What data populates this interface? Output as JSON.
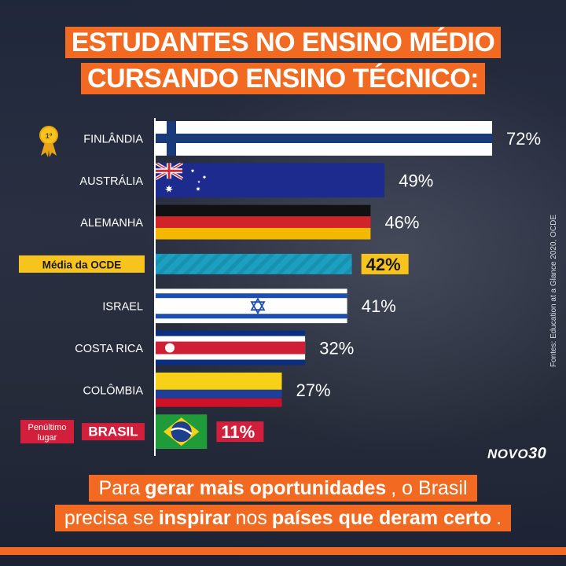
{
  "title": {
    "line1": "ESTUDANTES NO ENSINO MÉDIO",
    "line2": "CURSANDO ENSINO TÉCNICO:"
  },
  "chart_data": {
    "type": "bar",
    "orientation": "horizontal",
    "categories": [
      "FINLÂNDIA",
      "AUSTRÁLIA",
      "ALEMANHA",
      "Média da OCDE",
      "ISRAEL",
      "COSTA RICA",
      "COLÔMBIA",
      "BRASIL"
    ],
    "values": [
      72,
      49,
      46,
      42,
      41,
      32,
      27,
      11
    ],
    "value_labels": [
      "72%",
      "49%",
      "46%",
      "42%",
      "41%",
      "32%",
      "27%",
      "11%"
    ],
    "unit": "%",
    "xlim": [
      0,
      72
    ],
    "grid": false,
    "bar_styles": [
      "flag-finland",
      "flag-australia",
      "flag-germany",
      "ocde-striped",
      "flag-israel",
      "flag-costa-rica",
      "flag-colombia",
      "flag-brazil"
    ],
    "highlight": {
      "OCDE": "#f7c41e",
      "BRASIL": "#d21f3c"
    },
    "first_place_badge": "1º",
    "brasil_tag": "Penúltimo lugar"
  },
  "source": "Fontes: Education at a Glance 2020, OCDE",
  "logo": {
    "text": "NOVO",
    "number": "30"
  },
  "footer": {
    "l1_a": "Para ",
    "l1_b": "gerar mais oportunidades",
    "l1_c": ", o Brasil",
    "l2_a": "precisa se ",
    "l2_b": "inspirar",
    "l2_c": " nos ",
    "l2_d": "países que deram certo",
    "l2_e": "."
  },
  "colors": {
    "accent": "#f26a21",
    "ocde": "#f7c41e",
    "brasil": "#d21f3c",
    "ocde_bar": "#1c9fc0"
  }
}
